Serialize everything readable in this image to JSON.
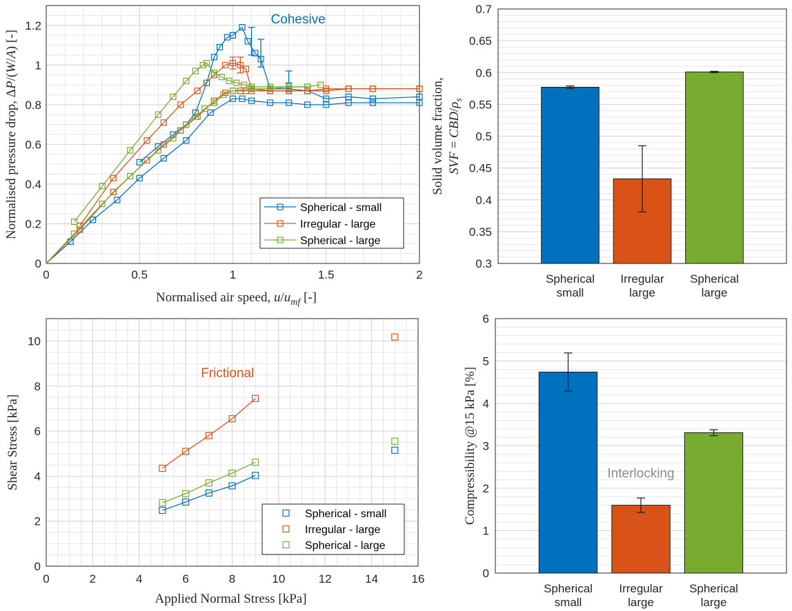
{
  "chart_data": [
    {
      "type": "line",
      "xlabel": "Normalised air speed, u/u_mf [-]",
      "ylabel": "Normalised pressure drop, ΔP/(W/A) [-]",
      "xlim": [
        0,
        2
      ],
      "ylim": [
        0,
        1.3
      ],
      "xticks": [
        "0",
        "0.5",
        "1",
        "1.5",
        "2"
      ],
      "yticks": [
        "0",
        "0.2",
        "0.4",
        "0.6",
        "0.8",
        "1",
        "1.2"
      ],
      "grid": true,
      "legend_position": "bottom-right",
      "annotations": [
        {
          "text": "Cohesive",
          "x": 1.35,
          "y": 1.21,
          "color": "#0072BD"
        }
      ],
      "series": [
        {
          "name": "Spherical - small",
          "color": "#0072BD",
          "marker": "square",
          "x": [
            0,
            0.13,
            0.25,
            0.38,
            0.5,
            0.63,
            0.75,
            0.88,
            1.0,
            1.05,
            1.1,
            1.2,
            1.3,
            1.4,
            1.5,
            1.62,
            1.75,
            2.0
          ],
          "y": [
            0,
            0.11,
            0.22,
            0.32,
            0.43,
            0.53,
            0.62,
            0.76,
            0.83,
            0.83,
            0.82,
            0.81,
            0.81,
            0.8,
            0.8,
            0.81,
            0.81,
            0.81
          ],
          "x_up": [
            1.0,
            1.05,
            1.08,
            1.12,
            1.15,
            1.2,
            1.3,
            1.4,
            1.5,
            1.62,
            1.75,
            2.0
          ],
          "y_up": [
            1.15,
            1.19,
            1.12,
            1.06,
            1.03,
            0.88,
            0.88,
            0.87,
            0.83,
            0.84,
            0.83,
            0.84
          ],
          "x_vent": [
            0.5,
            0.6,
            0.68,
            0.75,
            0.8,
            0.86,
            0.9,
            0.93,
            0.97,
            1.0
          ],
          "y_vent": [
            0.51,
            0.59,
            0.65,
            0.7,
            0.76,
            0.91,
            1.04,
            1.09,
            1.14,
            1.15
          ],
          "errorbars": [
            {
              "x": 1.1,
              "y": 1.12,
              "err": 0.07
            },
            {
              "x": 1.15,
              "y": 1.06,
              "err": 0.07
            },
            {
              "x": 1.3,
              "y": 0.94,
              "err": 0.03
            }
          ]
        },
        {
          "name": "Irregular - large",
          "color": "#D95319",
          "marker": "square",
          "x": [
            0,
            0.18,
            0.36,
            0.54,
            0.63,
            0.72,
            0.81,
            0.9,
            0.96,
            1.0,
            1.04,
            1.07,
            1.1,
            1.2,
            1.3,
            1.4,
            1.5,
            1.62,
            1.75,
            2.0
          ],
          "y": [
            0,
            0.17,
            0.36,
            0.52,
            0.6,
            0.67,
            0.74,
            0.82,
            0.86,
            0.87,
            0.87,
            0.87,
            0.87,
            0.87,
            0.87,
            0.87,
            0.87,
            0.88,
            0.88,
            0.88
          ],
          "x_up": [
            0.18,
            0.36,
            0.54,
            0.63,
            0.72,
            0.81,
            0.9,
            0.96,
            1.0,
            1.04,
            1.07,
            1.1,
            1.2,
            1.3,
            1.4,
            1.5,
            1.62,
            1.75,
            2.0
          ],
          "y_up": [
            0.19,
            0.43,
            0.62,
            0.71,
            0.8,
            0.87,
            0.95,
            1.0,
            1.01,
            1.0,
            0.98,
            0.88,
            0.87,
            0.87,
            0.87,
            0.88,
            0.88,
            0.88,
            0.88
          ],
          "errorbars": [
            {
              "x": 1.0,
              "y": 1.01,
              "err": 0.03
            },
            {
              "x": 1.04,
              "y": 1.0,
              "err": 0.04
            }
          ]
        },
        {
          "name": "Spherical - large",
          "color": "#77AC30",
          "marker": "square",
          "x": [
            0,
            0.15,
            0.3,
            0.45,
            0.6,
            0.68,
            0.75,
            0.8,
            0.85,
            0.9,
            0.95,
            1.0,
            1.1,
            1.2,
            1.3,
            1.4
          ],
          "y": [
            0,
            0.15,
            0.3,
            0.44,
            0.57,
            0.63,
            0.7,
            0.74,
            0.78,
            0.81,
            0.85,
            0.87,
            0.88,
            0.88,
            0.89,
            0.89
          ],
          "x_up": [
            0.15,
            0.3,
            0.45,
            0.6,
            0.68,
            0.75,
            0.8,
            0.84,
            0.86,
            0.9,
            0.94,
            0.98,
            1.02,
            1.06,
            1.1,
            1.2,
            1.3,
            1.4,
            1.47
          ],
          "y_up": [
            0.21,
            0.39,
            0.57,
            0.75,
            0.84,
            0.92,
            0.97,
            1.0,
            1.01,
            0.96,
            0.94,
            0.92,
            0.91,
            0.9,
            0.89,
            0.89,
            0.89,
            0.89,
            0.9
          ]
        }
      ]
    },
    {
      "type": "bar",
      "ylabel": "Solid volume fraction, SVF = CBD/ρ_s",
      "categories": [
        [
          "Spherical",
          "small"
        ],
        [
          "Irregular",
          "large"
        ],
        [
          "Spherical",
          "large"
        ]
      ],
      "values": [
        0.577,
        0.433,
        0.601
      ],
      "errors": [
        0.002,
        0.052,
        0.001
      ],
      "colors": [
        "#0072BD",
        "#D95319",
        "#77AC30"
      ],
      "ylim": [
        0.3,
        0.7
      ],
      "yticks": [
        "0.3",
        "0.35",
        "0.4",
        "0.45",
        "0.5",
        "0.55",
        "0.6",
        "0.65",
        "0.7"
      ],
      "grid": true
    },
    {
      "type": "scatter",
      "xlabel": "Applied Normal Stress [kPa]",
      "ylabel": "Shear Stress [kPa]",
      "xlim": [
        0,
        16
      ],
      "ylim": [
        0,
        11
      ],
      "xticks": [
        "0",
        "2",
        "4",
        "6",
        "8",
        "10",
        "12",
        "14",
        "16"
      ],
      "yticks": [
        "0",
        "2",
        "4",
        "6",
        "8",
        "10"
      ],
      "grid": true,
      "legend_position": "bottom-right",
      "annotations": [
        {
          "text": "Frictional",
          "x": 7.8,
          "y": 8.4,
          "color": "#D95319"
        }
      ],
      "series": [
        {
          "name": "Spherical - small",
          "color": "#0072BD",
          "x": [
            5,
            6,
            7,
            8,
            9,
            15
          ],
          "y": [
            2.48,
            2.85,
            3.25,
            3.57,
            4.03,
            5.15
          ]
        },
        {
          "name": "Irregular - large",
          "color": "#D95319",
          "x": [
            5,
            6,
            7,
            8,
            9,
            15
          ],
          "y": [
            4.35,
            5.1,
            5.8,
            6.55,
            7.45,
            10.18
          ]
        },
        {
          "name": "Spherical - large",
          "color": "#77AC30",
          "x": [
            5,
            6,
            7,
            8,
            9,
            15
          ],
          "y": [
            2.82,
            3.22,
            3.7,
            4.13,
            4.62,
            5.55
          ]
        }
      ]
    },
    {
      "type": "bar",
      "ylabel": "Compressibility @15 kPa [%]",
      "categories": [
        [
          "Spherical",
          "small"
        ],
        [
          "Irregular",
          "large"
        ],
        [
          "Spherical",
          "large"
        ]
      ],
      "values": [
        4.74,
        1.6,
        3.31
      ],
      "errors": [
        0.45,
        0.17,
        0.07
      ],
      "colors": [
        "#0072BD",
        "#D95319",
        "#77AC30"
      ],
      "ylim": [
        0,
        6
      ],
      "yticks": [
        "0",
        "1",
        "2",
        "3",
        "4",
        "5",
        "6"
      ],
      "grid": true,
      "annotations": [
        {
          "text": "Interlocking",
          "x": 2.0,
          "y": 2.25,
          "color": "#8c8c8c"
        }
      ]
    }
  ]
}
